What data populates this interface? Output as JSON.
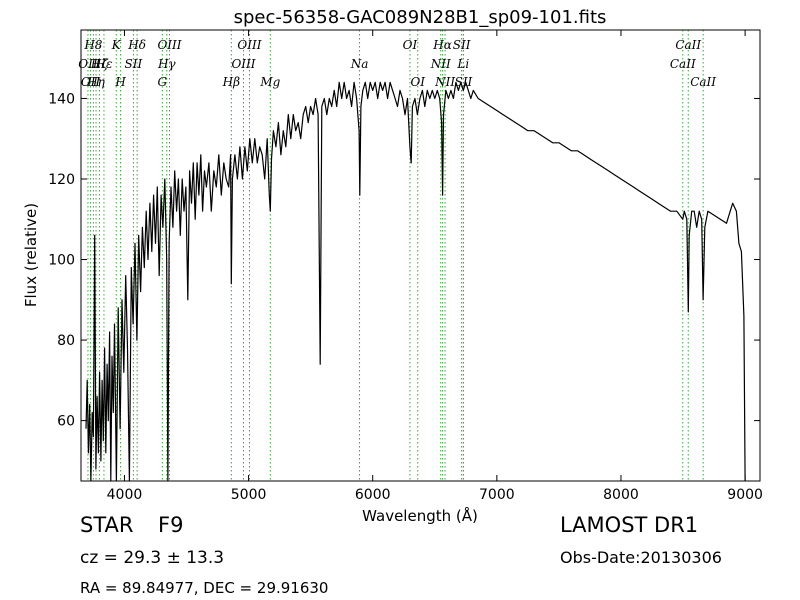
{
  "chart_data": {
    "type": "line",
    "title": "spec-56358-GAC089N28B1_sp09-101.fits",
    "xlabel": "Wavelength (Å)",
    "ylabel": "Flux (relative)",
    "xlim": [
      3650,
      9120
    ],
    "ylim": [
      45,
      157
    ],
    "grid": false,
    "x_ticks": [
      4000,
      5000,
      6000,
      7000,
      8000,
      9000
    ],
    "y_ticks": [
      60,
      80,
      100,
      120,
      140
    ],
    "line_color": "#000000",
    "marker_line_color": "#33aa33",
    "series": [
      {
        "points": [
          [
            3690,
            58
          ],
          [
            3700,
            70
          ],
          [
            3710,
            52
          ],
          [
            3720,
            64
          ],
          [
            3730,
            45
          ],
          [
            3740,
            62
          ],
          [
            3750,
            56
          ],
          [
            3760,
            106
          ],
          [
            3770,
            48
          ],
          [
            3780,
            66
          ],
          [
            3790,
            52
          ],
          [
            3800,
            72
          ],
          [
            3810,
            50
          ],
          [
            3820,
            70
          ],
          [
            3830,
            55
          ],
          [
            3840,
            78
          ],
          [
            3850,
            52
          ],
          [
            3860,
            74
          ],
          [
            3870,
            60
          ],
          [
            3880,
            82
          ],
          [
            3890,
            45
          ],
          [
            3900,
            76
          ],
          [
            3910,
            62
          ],
          [
            3920,
            84
          ],
          [
            3935,
            45
          ],
          [
            3950,
            88
          ],
          [
            3965,
            58
          ],
          [
            3980,
            90
          ],
          [
            3995,
            72
          ],
          [
            4010,
            96
          ],
          [
            4025,
            78
          ],
          [
            4040,
            45
          ],
          [
            4055,
            98
          ],
          [
            4070,
            84
          ],
          [
            4085,
            104
          ],
          [
            4100,
            80
          ],
          [
            4115,
            106
          ],
          [
            4130,
            92
          ],
          [
            4145,
            108
          ],
          [
            4160,
            98
          ],
          [
            4175,
            112
          ],
          [
            4190,
            100
          ],
          [
            4205,
            114
          ],
          [
            4220,
            102
          ],
          [
            4235,
            116
          ],
          [
            4250,
            104
          ],
          [
            4265,
            118
          ],
          [
            4280,
            96
          ],
          [
            4295,
            116
          ],
          [
            4310,
            108
          ],
          [
            4325,
            120
          ],
          [
            4340,
            100
          ],
          [
            4350,
            45
          ],
          [
            4360,
            104
          ],
          [
            4375,
            118
          ],
          [
            4390,
            108
          ],
          [
            4405,
            122
          ],
          [
            4420,
            112
          ],
          [
            4435,
            120
          ],
          [
            4450,
            106
          ],
          [
            4465,
            120
          ],
          [
            4480,
            112
          ],
          [
            4495,
            118
          ],
          [
            4510,
            90
          ],
          [
            4525,
            122
          ],
          [
            4540,
            114
          ],
          [
            4555,
            124
          ],
          [
            4570,
            110
          ],
          [
            4585,
            124
          ],
          [
            4600,
            116
          ],
          [
            4615,
            126
          ],
          [
            4630,
            112
          ],
          [
            4645,
            122
          ],
          [
            4660,
            118
          ],
          [
            4680,
            124
          ],
          [
            4700,
            112
          ],
          [
            4720,
            122
          ],
          [
            4740,
            118
          ],
          [
            4760,
            126
          ],
          [
            4780,
            116
          ],
          [
            4800,
            124
          ],
          [
            4820,
            120
          ],
          [
            4840,
            118
          ],
          [
            4855,
            126
          ],
          [
            4861,
            94
          ],
          [
            4870,
            120
          ],
          [
            4890,
            126
          ],
          [
            4910,
            120
          ],
          [
            4930,
            128
          ],
          [
            4950,
            120
          ],
          [
            4970,
            128
          ],
          [
            4990,
            122
          ],
          [
            5010,
            130
          ],
          [
            5030,
            124
          ],
          [
            5050,
            130
          ],
          [
            5070,
            124
          ],
          [
            5090,
            128
          ],
          [
            5110,
            126
          ],
          [
            5130,
            120
          ],
          [
            5150,
            130
          ],
          [
            5167,
            116
          ],
          [
            5175,
            112
          ],
          [
            5185,
            125
          ],
          [
            5200,
            132
          ],
          [
            5220,
            128
          ],
          [
            5240,
            134
          ],
          [
            5260,
            126
          ],
          [
            5280,
            132
          ],
          [
            5300,
            128
          ],
          [
            5320,
            136
          ],
          [
            5340,
            130
          ],
          [
            5360,
            136
          ],
          [
            5380,
            132
          ],
          [
            5400,
            134
          ],
          [
            5420,
            130
          ],
          [
            5440,
            136
          ],
          [
            5460,
            138
          ],
          [
            5480,
            134
          ],
          [
            5500,
            138
          ],
          [
            5520,
            136
          ],
          [
            5540,
            140
          ],
          [
            5560,
            136
          ],
          [
            5577,
            74
          ],
          [
            5590,
            138
          ],
          [
            5610,
            140
          ],
          [
            5630,
            136
          ],
          [
            5650,
            140
          ],
          [
            5670,
            138
          ],
          [
            5690,
            142
          ],
          [
            5710,
            138
          ],
          [
            5730,
            144
          ],
          [
            5750,
            140
          ],
          [
            5770,
            144
          ],
          [
            5790,
            140
          ],
          [
            5810,
            142
          ],
          [
            5830,
            138
          ],
          [
            5850,
            144
          ],
          [
            5870,
            140
          ],
          [
            5890,
            132
          ],
          [
            5896,
            116
          ],
          [
            5905,
            138
          ],
          [
            5920,
            142
          ],
          [
            5940,
            144
          ],
          [
            5960,
            140
          ],
          [
            5980,
            144
          ],
          [
            6000,
            142
          ],
          [
            6020,
            144
          ],
          [
            6040,
            140
          ],
          [
            6060,
            144
          ],
          [
            6080,
            142
          ],
          [
            6100,
            144
          ],
          [
            6120,
            140
          ],
          [
            6140,
            144
          ],
          [
            6160,
            142
          ],
          [
            6180,
            140
          ],
          [
            6200,
            138
          ],
          [
            6220,
            142
          ],
          [
            6240,
            140
          ],
          [
            6260,
            136
          ],
          [
            6280,
            140
          ],
          [
            6300,
            128
          ],
          [
            6310,
            124
          ],
          [
            6320,
            138
          ],
          [
            6340,
            140
          ],
          [
            6360,
            136
          ],
          [
            6380,
            140
          ],
          [
            6400,
            142
          ],
          [
            6420,
            138
          ],
          [
            6440,
            142
          ],
          [
            6460,
            140
          ],
          [
            6480,
            142
          ],
          [
            6500,
            140
          ],
          [
            6520,
            142
          ],
          [
            6540,
            140
          ],
          [
            6555,
            134
          ],
          [
            6563,
            116
          ],
          [
            6570,
            136
          ],
          [
            6590,
            142
          ],
          [
            6610,
            140
          ],
          [
            6630,
            142
          ],
          [
            6650,
            140
          ],
          [
            6670,
            144
          ],
          [
            6690,
            142
          ],
          [
            6710,
            144
          ],
          [
            6730,
            142
          ],
          [
            6750,
            144
          ],
          [
            6770,
            142
          ],
          [
            6790,
            140
          ],
          [
            6810,
            142
          ],
          [
            6850,
            140
          ],
          [
            6900,
            139
          ],
          [
            6950,
            138
          ],
          [
            7000,
            137
          ],
          [
            7050,
            136
          ],
          [
            7100,
            135
          ],
          [
            7150,
            134
          ],
          [
            7200,
            133
          ],
          [
            7250,
            132
          ],
          [
            7300,
            132
          ],
          [
            7350,
            131
          ],
          [
            7400,
            130
          ],
          [
            7450,
            129
          ],
          [
            7500,
            129
          ],
          [
            7550,
            128
          ],
          [
            7600,
            127
          ],
          [
            7650,
            127
          ],
          [
            7700,
            126
          ],
          [
            7750,
            125
          ],
          [
            7800,
            124
          ],
          [
            7850,
            123
          ],
          [
            7900,
            122
          ],
          [
            7950,
            121
          ],
          [
            8000,
            120
          ],
          [
            8050,
            119
          ],
          [
            8100,
            118
          ],
          [
            8150,
            117
          ],
          [
            8200,
            116
          ],
          [
            8250,
            115
          ],
          [
            8300,
            114
          ],
          [
            8350,
            113
          ],
          [
            8400,
            112
          ],
          [
            8450,
            112
          ],
          [
            8498,
            110
          ],
          [
            8510,
            112
          ],
          [
            8530,
            110
          ],
          [
            8542,
            87
          ],
          [
            8550,
            106
          ],
          [
            8570,
            112
          ],
          [
            8590,
            112
          ],
          [
            8610,
            108
          ],
          [
            8630,
            112
          ],
          [
            8650,
            110
          ],
          [
            8662,
            90
          ],
          [
            8675,
            108
          ],
          [
            8700,
            112
          ],
          [
            8750,
            111
          ],
          [
            8800,
            110
          ],
          [
            8850,
            109
          ],
          [
            8880,
            112
          ],
          [
            8900,
            114
          ],
          [
            8930,
            112
          ],
          [
            8950,
            104
          ],
          [
            8970,
            102
          ],
          [
            8990,
            86
          ],
          [
            9000,
            45
          ]
        ]
      }
    ],
    "line_markers": [
      {
        "wave": 3706,
        "label": "OII",
        "row": 1
      },
      {
        "wave": 3727,
        "label": "OII",
        "row": 2
      },
      {
        "wave": 3750,
        "label": "H8",
        "row": 0
      },
      {
        "wave": 3771,
        "label": "Hη",
        "row": 2
      },
      {
        "wave": 3798,
        "label": "Hζ",
        "row": 1
      },
      {
        "wave": 3835,
        "label": "Hε",
        "row": 1
      },
      {
        "wave": 3934,
        "label": "K",
        "row": 0
      },
      {
        "wave": 3969,
        "label": "H",
        "row": 2
      },
      {
        "wave": 4072,
        "label": "SII",
        "row": 1
      },
      {
        "wave": 4102,
        "label": "Hδ",
        "row": 0
      },
      {
        "wave": 4305,
        "label": "G",
        "row": 2
      },
      {
        "wave": 4341,
        "label": "Hγ",
        "row": 1
      },
      {
        "wave": 4363,
        "label": "OIII",
        "row": 0
      },
      {
        "wave": 4861,
        "label": "Hβ",
        "row": 2
      },
      {
        "wave": 4959,
        "label": "OIII",
        "row": 1
      },
      {
        "wave": 5007,
        "label": "OIII",
        "row": 0
      },
      {
        "wave": 5175,
        "label": "Mg",
        "row": 2
      },
      {
        "wave": 5894,
        "label": "Na",
        "row": 1
      },
      {
        "wave": 6300,
        "label": "OI",
        "row": 0
      },
      {
        "wave": 6363,
        "label": "OI",
        "row": 2
      },
      {
        "wave": 6548,
        "label": "NII",
        "row": 1
      },
      {
        "wave": 6563,
        "label": "Hα",
        "row": 0
      },
      {
        "wave": 6583,
        "label": "NII",
        "row": 2
      },
      {
        "wave": 6716,
        "label": "SII",
        "row": 0
      },
      {
        "wave": 6730,
        "label": "Li",
        "row": 1
      },
      {
        "wave": 6731,
        "label": "SII",
        "row": 2
      },
      {
        "wave": 8498,
        "label": "CaII",
        "row": 1
      },
      {
        "wave": 8542,
        "label": "CaII",
        "row": 0
      },
      {
        "wave": 8662,
        "label": "CaII",
        "row": 2
      }
    ]
  },
  "info": {
    "object_class": "STAR",
    "subclass": "F9",
    "redshift_text": "cz = 29.3 ± 13.3",
    "coords_text": "RA = 89.84977, DEC = 29.91630",
    "survey": "LAMOST DR1",
    "obs_date": "Obs-Date:20130306"
  }
}
